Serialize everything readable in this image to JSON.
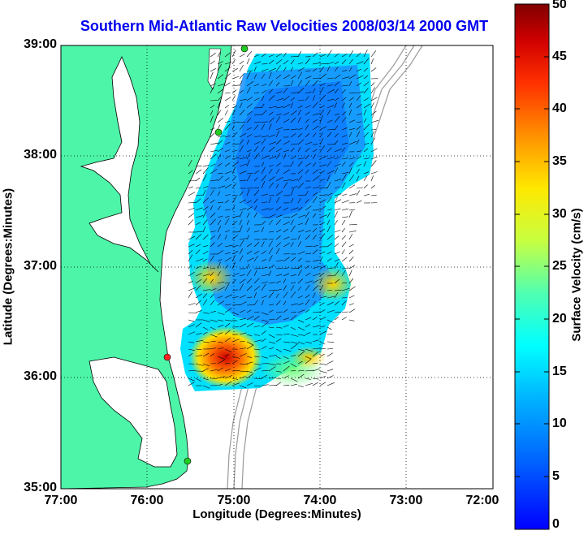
{
  "title": "Southern Mid-Atlantic Raw Velocities 2008/03/14 2000 GMT",
  "map": {
    "x_axis_label": "Longitude (Degrees:Minutes)",
    "y_axis_label": "Latitude (Degrees:Minutes)",
    "x_ticks": [
      "77:00",
      "76:00",
      "75:00",
      "74:00",
      "73:00",
      "72:00"
    ],
    "y_ticks": [
      "39:00",
      "38:00",
      "37:00",
      "36:00",
      "35:00"
    ],
    "lon_range": [
      -77,
      -72
    ],
    "lat_range": [
      35,
      39
    ],
    "grid": true,
    "land_color": "#4df5a8",
    "water_color": "#ffffff",
    "station_markers": [
      {
        "color": "#22cc22",
        "lon": -74.9,
        "lat": 39.0
      },
      {
        "color": "#22cc22",
        "lon": -75.15,
        "lat": 38.22
      },
      {
        "color": "#ff2222",
        "lon": -75.75,
        "lat": 36.18
      },
      {
        "color": "#22cc22",
        "lon": -75.52,
        "lat": 35.25
      }
    ]
  },
  "colorbar": {
    "label": "Surface Velocity (cm/s)",
    "ticks": [
      "0",
      "5",
      "10",
      "15",
      "20",
      "25",
      "30",
      "35",
      "40",
      "45",
      "50"
    ],
    "min": 0,
    "max": 50,
    "colormap": "jet"
  }
}
